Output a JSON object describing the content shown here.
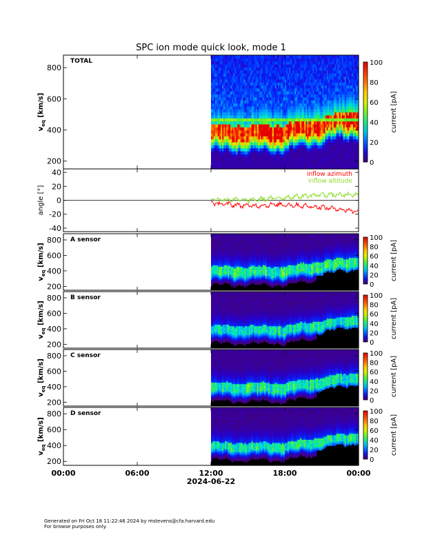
{
  "chart_data": {
    "type": "heatmap",
    "title": "SPC ion mode quick look, mode 1",
    "date_label": "2024-06-22",
    "x_axis": {
      "tick_labels": [
        "00:00",
        "06:00",
        "12:00",
        "18:00",
        "00:00"
      ],
      "range_hours": [
        0,
        24
      ],
      "data_start_hour": 12
    },
    "colorbar": {
      "label": "current [pA]",
      "range": [
        0,
        100
      ],
      "ticks_total": [
        0,
        20,
        40,
        60,
        80,
        100
      ],
      "ticks_sensor": [
        0,
        20,
        40,
        60,
        80,
        100
      ]
    },
    "panels": [
      {
        "id": "total",
        "label": "TOTAL",
        "ylabel": "v",
        "ylabel_sub": "eq",
        "ylabel_units": "[km/s]",
        "yrange": [
          150,
          880
        ],
        "yticks": [
          200,
          400,
          600,
          800
        ],
        "colorbar": true,
        "band": {
          "core_start": 340,
          "core_end": 430,
          "core_peak_current": 95,
          "shift_at_end": 100,
          "saturated_row": 470
        }
      },
      {
        "id": "angle",
        "ylabel": "angle [°]",
        "yrange": [
          -45,
          45
        ],
        "yticks": [
          -40,
          -20,
          0,
          20,
          40
        ],
        "colorbar": false,
        "series": [
          {
            "name": "inflow azimuth",
            "color": "#ff0000",
            "trend": [
              [
                12,
                -4
              ],
              [
                15,
                -8
              ],
              [
                18,
                -6
              ],
              [
                21,
                -10
              ],
              [
                24,
                -16
              ]
            ]
          },
          {
            "name": "inflow altitude",
            "color": "#88dd22",
            "trend": [
              [
                12,
                2
              ],
              [
                15,
                0
              ],
              [
                18,
                4
              ],
              [
                21,
                8
              ],
              [
                24,
                7
              ]
            ]
          }
        ]
      },
      {
        "id": "a",
        "label": "A sensor",
        "ylabel": "v",
        "ylabel_sub": "eq",
        "ylabel_units": "[km/s]",
        "yrange": [
          150,
          880
        ],
        "yticks": [
          200,
          400,
          600,
          800
        ],
        "colorbar": true,
        "band": {
          "core_start": 340,
          "core_end": 460,
          "core_peak_current": 40,
          "shift_at_end": 130
        }
      },
      {
        "id": "b",
        "label": "B sensor",
        "ylabel": "v",
        "ylabel_sub": "eq",
        "ylabel_units": "[km/s]",
        "yrange": [
          150,
          880
        ],
        "yticks": [
          200,
          400,
          600,
          800
        ],
        "colorbar": true,
        "band": {
          "core_start": 330,
          "core_end": 440,
          "core_peak_current": 35,
          "shift_at_end": 140
        }
      },
      {
        "id": "c",
        "label": "C sensor",
        "ylabel": "v",
        "ylabel_sub": "eq",
        "ylabel_units": "[km/s]",
        "yrange": [
          150,
          880
        ],
        "yticks": [
          200,
          400,
          600,
          800
        ],
        "colorbar": true,
        "band": {
          "core_start": 330,
          "core_end": 450,
          "core_peak_current": 38,
          "shift_at_end": 140
        }
      },
      {
        "id": "d",
        "label": "D sensor",
        "ylabel": "v",
        "ylabel_sub": "eq",
        "ylabel_units": "[km/s]",
        "yrange": [
          150,
          880
        ],
        "yticks": [
          200,
          400,
          600,
          800
        ],
        "colorbar": true,
        "band": {
          "core_start": 340,
          "core_end": 440,
          "core_peak_current": 36,
          "shift_at_end": 130
        }
      }
    ]
  },
  "footer": {
    "line1": "Generated on Fri Oct 18 11:22:46 2024 by mstevens@cfa.harvard.edu",
    "line2": "For browse purposes only."
  }
}
